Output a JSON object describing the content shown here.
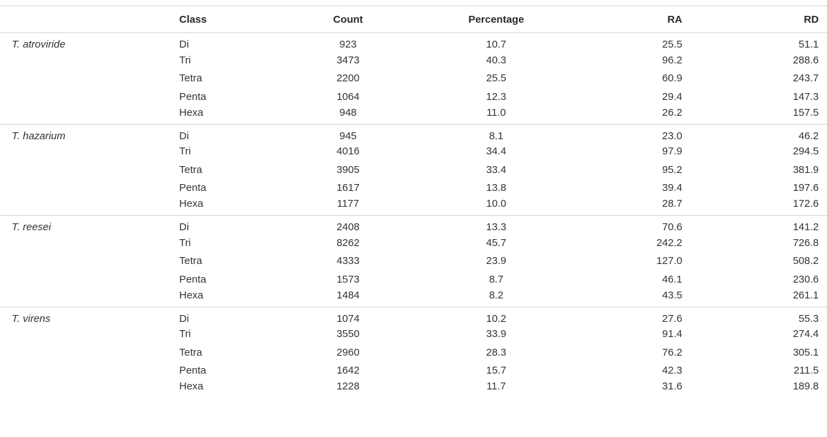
{
  "table": {
    "headers": {
      "species": "",
      "class": "Class",
      "count": "Count",
      "percentage": "Percentage",
      "ra": "RA",
      "rd": "RD"
    },
    "groups": [
      {
        "species": "T. atroviride",
        "rows": [
          {
            "class": "Di",
            "count": "923",
            "percentage": "10.7",
            "ra": "25.5",
            "rd": "51.1"
          },
          {
            "class": "Tri",
            "count": "3473",
            "percentage": "40.3",
            "ra": "96.2",
            "rd": "288.6"
          },
          {
            "class": "Tetra",
            "count": "2200",
            "percentage": "25.5",
            "ra": "60.9",
            "rd": "243.7"
          },
          {
            "class": "Penta",
            "count": "1064",
            "percentage": "12.3",
            "ra": "29.4",
            "rd": "147.3"
          },
          {
            "class": "Hexa",
            "count": "948",
            "percentage": "11.0",
            "ra": "26.2",
            "rd": "157.5"
          }
        ]
      },
      {
        "species": "T. hazarium",
        "rows": [
          {
            "class": "Di",
            "count": "945",
            "percentage": "8.1",
            "ra": "23.0",
            "rd": "46.2"
          },
          {
            "class": "Tri",
            "count": "4016",
            "percentage": "34.4",
            "ra": "97.9",
            "rd": "294.5"
          },
          {
            "class": "Tetra",
            "count": "3905",
            "percentage": "33.4",
            "ra": "95.2",
            "rd": "381.9"
          },
          {
            "class": "Penta",
            "count": "1617",
            "percentage": "13.8",
            "ra": "39.4",
            "rd": "197.6"
          },
          {
            "class": "Hexa",
            "count": "1177",
            "percentage": "10.0",
            "ra": "28.7",
            "rd": "172.6"
          }
        ]
      },
      {
        "species": "T. reesei",
        "rows": [
          {
            "class": "Di",
            "count": "2408",
            "percentage": "13.3",
            "ra": "70.6",
            "rd": "141.2"
          },
          {
            "class": "Tri",
            "count": "8262",
            "percentage": "45.7",
            "ra": "242.2",
            "rd": "726.8"
          },
          {
            "class": "Tetra",
            "count": "4333",
            "percentage": "23.9",
            "ra": "127.0",
            "rd": "508.2"
          },
          {
            "class": "Penta",
            "count": "1573",
            "percentage": "8.7",
            "ra": "46.1",
            "rd": "230.6"
          },
          {
            "class": "Hexa",
            "count": "1484",
            "percentage": "8.2",
            "ra": "43.5",
            "rd": "261.1"
          }
        ]
      },
      {
        "species": "T. virens",
        "rows": [
          {
            "class": "Di",
            "count": "1074",
            "percentage": "10.2",
            "ra": "27.6",
            "rd": "55.3"
          },
          {
            "class": "Tri",
            "count": "3550",
            "percentage": "33.9",
            "ra": "91.4",
            "rd": "274.4"
          },
          {
            "class": "Tetra",
            "count": "2960",
            "percentage": "28.3",
            "ra": "76.2",
            "rd": "305.1"
          },
          {
            "class": "Penta",
            "count": "1642",
            "percentage": "15.7",
            "ra": "42.3",
            "rd": "211.5"
          },
          {
            "class": "Hexa",
            "count": "1228",
            "percentage": "11.7",
            "ra": "31.6",
            "rd": "189.8"
          }
        ]
      }
    ]
  }
}
